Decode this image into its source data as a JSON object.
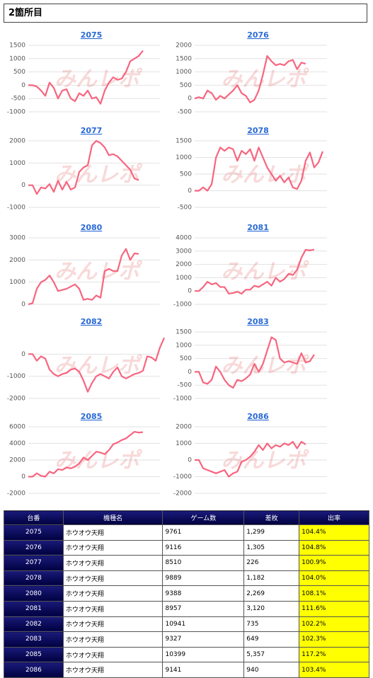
{
  "header": {
    "title": "2箇所目"
  },
  "watermark": "みんレポ",
  "chart_data": [
    {
      "type": "line",
      "title": "2075",
      "color": "#f7657f",
      "grid": true,
      "ylim": [
        -1000,
        1500
      ],
      "yticks": [
        -1000,
        -500,
        0,
        500,
        1000,
        1500
      ],
      "values": [
        0,
        0,
        -50,
        -200,
        -400,
        100,
        -100,
        -500,
        -200,
        -150,
        -500,
        -600,
        -300,
        -400,
        -200,
        -500,
        -450,
        -700,
        -200,
        100,
        300,
        200,
        250,
        500,
        900,
        1000,
        1100,
        1299
      ]
    },
    {
      "type": "line",
      "title": "2076",
      "color": "#f7657f",
      "grid": true,
      "ylim": [
        -500,
        2000
      ],
      "yticks": [
        -500,
        0,
        500,
        1000,
        1500,
        2000
      ],
      "values": [
        0,
        50,
        0,
        300,
        200,
        -50,
        100,
        0,
        150,
        300,
        500,
        200,
        100,
        -150,
        -50,
        300,
        900,
        1600,
        1400,
        1250,
        1300,
        1250,
        1400,
        1450,
        1100,
        1350,
        1305
      ]
    },
    {
      "type": "line",
      "title": "2077",
      "color": "#f7657f",
      "grid": true,
      "ylim": [
        -1000,
        2000
      ],
      "yticks": [
        -1000,
        0,
        1000,
        2000
      ],
      "values": [
        0,
        0,
        -400,
        -100,
        -150,
        50,
        -300,
        200,
        -200,
        150,
        -200,
        -100,
        600,
        800,
        900,
        1800,
        2000,
        1900,
        1700,
        1350,
        1400,
        1300,
        1100,
        900,
        700,
        300,
        226
      ]
    },
    {
      "type": "line",
      "title": "2078",
      "color": "#f7657f",
      "grid": true,
      "ylim": [
        -500,
        1500
      ],
      "yticks": [
        -500,
        0,
        500,
        1000,
        1500
      ],
      "values": [
        0,
        0,
        100,
        0,
        200,
        1000,
        1300,
        1200,
        1300,
        1250,
        900,
        1200,
        1100,
        1250,
        900,
        1300,
        1000,
        700,
        500,
        300,
        450,
        250,
        400,
        100,
        50,
        300,
        900,
        1150,
        700,
        850,
        1182
      ]
    },
    {
      "type": "line",
      "title": "2080",
      "color": "#f7657f",
      "grid": true,
      "ylim": [
        0,
        3000
      ],
      "yticks": [
        0,
        1000,
        2000,
        3000
      ],
      "values": [
        0,
        50,
        700,
        1000,
        1100,
        1300,
        1000,
        600,
        650,
        700,
        800,
        900,
        700,
        200,
        250,
        200,
        400,
        300,
        1500,
        1600,
        1500,
        1500,
        2200,
        2500,
        2000,
        2300,
        2269
      ]
    },
    {
      "type": "line",
      "title": "2081",
      "color": "#f7657f",
      "grid": true,
      "ylim": [
        -1000,
        4000
      ],
      "yticks": [
        -1000,
        0,
        1000,
        2000,
        3000,
        4000
      ],
      "values": [
        0,
        0,
        300,
        700,
        500,
        600,
        300,
        300,
        -200,
        -150,
        -50,
        -200,
        100,
        100,
        400,
        300,
        500,
        700,
        400,
        1000,
        700,
        900,
        1300,
        1200,
        1600,
        2500,
        3100,
        3050,
        3120
      ]
    },
    {
      "type": "line",
      "title": "2082",
      "color": "#f7657f",
      "grid": true,
      "ylim": [
        -2000,
        1000
      ],
      "yticks": [
        -2000,
        -1000,
        0
      ],
      "values": [
        0,
        0,
        -300,
        -100,
        -200,
        -700,
        -900,
        -1000,
        -900,
        -850,
        -700,
        -650,
        -800,
        -1200,
        -1700,
        -1300,
        -1000,
        -900,
        -1000,
        -1100,
        -800,
        -600,
        -1000,
        -1100,
        -1000,
        -900,
        -850,
        -750,
        -100,
        -150,
        -300,
        300,
        735
      ]
    },
    {
      "type": "line",
      "title": "2083",
      "color": "#f7657f",
      "grid": true,
      "ylim": [
        -1000,
        1500
      ],
      "yticks": [
        -1000,
        -500,
        0,
        500,
        1000,
        1500
      ],
      "values": [
        0,
        0,
        -400,
        -450,
        -300,
        200,
        0,
        -300,
        -500,
        -600,
        -300,
        -350,
        -250,
        -100,
        300,
        0,
        300,
        800,
        1300,
        1200,
        500,
        350,
        400,
        350,
        300,
        700,
        350,
        400,
        649
      ]
    },
    {
      "type": "line",
      "title": "2085",
      "color": "#f7657f",
      "grid": true,
      "ylim": [
        -2000,
        6000
      ],
      "yticks": [
        -2000,
        0,
        2000,
        4000,
        6000
      ],
      "values": [
        0,
        0,
        400,
        100,
        0,
        600,
        400,
        900,
        800,
        1100,
        1000,
        1200,
        1600,
        2300,
        2000,
        2500,
        3000,
        2900,
        2700,
        3200,
        3900,
        4100,
        4400,
        4600,
        5000,
        5400,
        5300,
        5357
      ]
    },
    {
      "type": "line",
      "title": "2086",
      "color": "#f7657f",
      "grid": true,
      "ylim": [
        -2000,
        2000
      ],
      "yticks": [
        -2000,
        -1000,
        0,
        1000,
        2000
      ],
      "values": [
        0,
        0,
        -500,
        -600,
        -700,
        -800,
        -700,
        -600,
        -1000,
        -800,
        -700,
        -100,
        0,
        200,
        500,
        900,
        600,
        1000,
        700,
        900,
        800,
        1000,
        900,
        1100,
        700,
        1100,
        940
      ]
    }
  ],
  "table": {
    "columns": [
      "台番",
      "機種名",
      "ゲーム数",
      "差枚",
      "出率"
    ],
    "rows": [
      [
        "2075",
        "ホウオウ天翔",
        "9761",
        "1,299",
        "104.4%"
      ],
      [
        "2076",
        "ホウオウ天翔",
        "9116",
        "1,305",
        "104.8%"
      ],
      [
        "2077",
        "ホウオウ天翔",
        "8510",
        "226",
        "100.9%"
      ],
      [
        "2078",
        "ホウオウ天翔",
        "9889",
        "1,182",
        "104.0%"
      ],
      [
        "2080",
        "ホウオウ天翔",
        "9388",
        "2,269",
        "108.1%"
      ],
      [
        "2081",
        "ホウオウ天翔",
        "8957",
        "3,120",
        "111.6%"
      ],
      [
        "2082",
        "ホウオウ天翔",
        "10941",
        "735",
        "102.2%"
      ],
      [
        "2083",
        "ホウオウ天翔",
        "9327",
        "649",
        "102.3%"
      ],
      [
        "2085",
        "ホウオウ天翔",
        "10399",
        "5,357",
        "117.2%"
      ],
      [
        "2086",
        "ホウオウ天翔",
        "9141",
        "940",
        "103.4%"
      ]
    ]
  }
}
